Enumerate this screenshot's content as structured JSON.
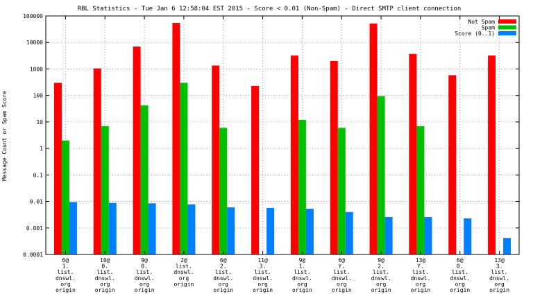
{
  "chart_data": {
    "type": "bar",
    "title": "RBL Statistics - Tue Jan  6 12:58:04 EST 2015 - Score < 0.01 (Non-Spam) - Direct SMTP client connection",
    "xlabel": "",
    "ylabel": "Message Count or Spam Score",
    "y_scale": "log",
    "ylim": [
      0.0001,
      100000
    ],
    "y_ticks": [
      "0.0001",
      "0.001",
      "0.01",
      "0.1",
      "1",
      "10",
      "100",
      "1000",
      "10000",
      "100000"
    ],
    "grid": true,
    "legend_position": "top-right",
    "categories": [
      [
        "6@",
        "1.",
        "list.",
        "dnswl.",
        "org",
        "origin"
      ],
      [
        "10@",
        "0.",
        "list.",
        "dnswl.",
        "org",
        "origin"
      ],
      [
        "9@",
        "0.",
        "list.",
        "dnswl.",
        "org",
        "origin"
      ],
      [
        "2@",
        "list.",
        "dnswl.",
        "org",
        "origin"
      ],
      [
        "6@",
        "2.",
        "list.",
        "dnswl.",
        "org",
        "origin"
      ],
      [
        "11@",
        "3.",
        "list.",
        "dnswl.",
        "org",
        "origin"
      ],
      [
        "9@",
        "1.",
        "list.",
        "dnswl.",
        "org",
        "origin"
      ],
      [
        "6@",
        "Y.",
        "list.",
        "dnswl.",
        "org",
        "origin"
      ],
      [
        "9@",
        "2.",
        "list.",
        "dnswl.",
        "org",
        "origin"
      ],
      [
        "13@",
        "Y.",
        "list.",
        "dnswl.",
        "org",
        "origin"
      ],
      [
        "6@",
        "0.",
        "list.",
        "dnswl.",
        "org",
        "origin"
      ],
      [
        "13@",
        "3.",
        "list.",
        "dnswl.",
        "org",
        "origin"
      ]
    ],
    "series": [
      {
        "name": "Not Spam",
        "color": "#ff0000",
        "values": [
          300,
          1050,
          7000,
          55000,
          1350,
          230,
          3200,
          2000,
          52000,
          3700,
          580,
          3200
        ]
      },
      {
        "name": "Spam",
        "color": "#00c000",
        "values": [
          2,
          7,
          42,
          300,
          6,
          null,
          12,
          6,
          95,
          7,
          null,
          null
        ]
      },
      {
        "name": "Score (0..1)",
        "color": "#0080ff",
        "values": [
          0.0095,
          0.0088,
          0.0085,
          0.0078,
          0.006,
          0.0057,
          0.0053,
          0.004,
          0.0026,
          0.0026,
          0.0023,
          0.00042
        ]
      }
    ]
  }
}
